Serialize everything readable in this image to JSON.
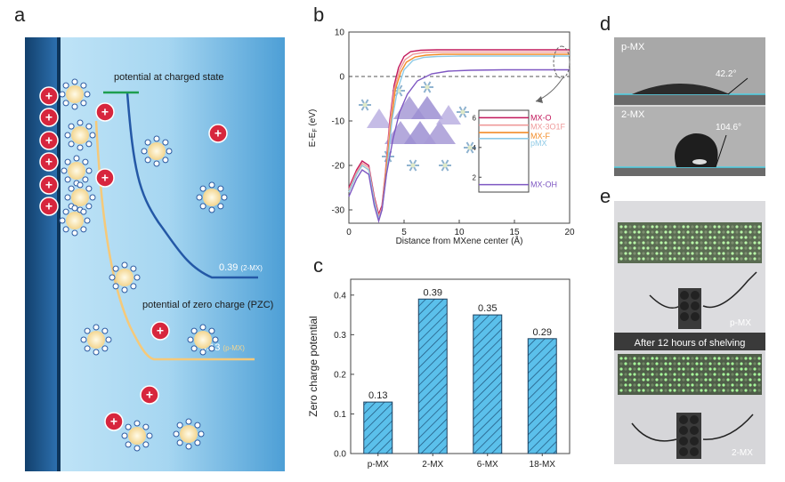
{
  "panels": {
    "a": {
      "letter": "a",
      "charged_label": "potential at charged state",
      "pzc_label": "potential of zero charge  (PZC)",
      "value_2mx": "0.39",
      "tag_2mx": "(2-MX)",
      "value_pmx": "0.13",
      "tag_pmx": "(p-MX)",
      "plus_sign": "+"
    },
    "b": {
      "letter": "b"
    },
    "c": {
      "letter": "c"
    },
    "d": {
      "letter": "d",
      "sample_top": "p-MX",
      "angle_top": "42.2°",
      "sample_bottom": "2-MX",
      "angle_bottom": "104.6°"
    },
    "e": {
      "letter": "e",
      "tag_top": "p-MX",
      "caption": "After 12 hours of shelving",
      "tag_bottom": "2-MX"
    }
  },
  "chart_data": [
    {
      "type": "line",
      "xlabel": "Distance from MXene center (Å)",
      "ylabel": "E-E",
      "ylabel_sub": "F",
      "ylabel_unit": " (eV)",
      "xlim": [
        0,
        20
      ],
      "ylim": [
        -33,
        10
      ],
      "xticks": [
        0,
        5,
        10,
        15,
        20
      ],
      "yticks": [
        10,
        0,
        -10,
        -20,
        -30
      ],
      "series": [
        {
          "name": "MX-O",
          "color": "#c2185b",
          "x": [
            0,
            0.7,
            1.2,
            1.8,
            2.3,
            2.7,
            3.0,
            3.3,
            3.7,
            4.1,
            4.5,
            5.0,
            5.6,
            6.5,
            8,
            10,
            13,
            16,
            20
          ],
          "y": [
            -25,
            -21,
            -19,
            -20,
            -27,
            -31,
            -29,
            -22,
            -10,
            -2,
            2,
            4.5,
            5.6,
            5.9,
            6,
            6,
            6,
            6,
            6
          ]
        },
        {
          "name": "MX-3O1F",
          "color": "#ef9a9a",
          "x": [
            0,
            0.7,
            1.2,
            1.8,
            2.3,
            2.7,
            3.0,
            3.3,
            3.7,
            4.1,
            4.6,
            5.1,
            5.8,
            6.8,
            8,
            10,
            13,
            16,
            20
          ],
          "y": [
            -25.5,
            -21.5,
            -19.5,
            -20.5,
            -27.5,
            -31.5,
            -29.5,
            -22.5,
            -11,
            -3,
            1.5,
            3.8,
            5,
            5.4,
            5.5,
            5.5,
            5.5,
            5.5,
            5.5
          ]
        },
        {
          "name": "MX-F",
          "color": "#f28c28",
          "x": [
            0,
            0.7,
            1.2,
            1.8,
            2.3,
            2.7,
            3.0,
            3.3,
            3.8,
            4.2,
            4.7,
            5.2,
            6,
            7,
            8.5,
            10,
            13,
            16,
            20
          ],
          "y": [
            -26,
            -22,
            -20,
            -21,
            -28,
            -32,
            -30,
            -23,
            -11,
            -3,
            1,
            3.2,
            4.4,
            4.8,
            5,
            5,
            5,
            5,
            5
          ]
        },
        {
          "name": "pMX",
          "color": "#8ecae6",
          "x": [
            0,
            0.7,
            1.2,
            1.8,
            2.3,
            2.7,
            3.0,
            3.4,
            3.9,
            4.4,
            5,
            5.8,
            6.8,
            8,
            10,
            13,
            16,
            20
          ],
          "y": [
            -26,
            -22,
            -20,
            -21,
            -28,
            -32,
            -30,
            -22,
            -10,
            -3,
            1.5,
            3.6,
            4.3,
            4.5,
            4.6,
            4.6,
            4.6,
            4.6
          ]
        },
        {
          "name": "MX-OH",
          "color": "#7e57c2",
          "x": [
            0,
            0.7,
            1.2,
            1.8,
            2.3,
            2.7,
            3.0,
            3.4,
            4,
            4.6,
            5.3,
            6.2,
            7.5,
            9,
            11,
            14,
            17,
            20
          ],
          "y": [
            -27,
            -23,
            -21,
            -22,
            -29,
            -32.5,
            -30,
            -22,
            -14,
            -8,
            -4,
            -1,
            0.6,
            1.2,
            1.4,
            1.5,
            1.5,
            1.5
          ]
        }
      ],
      "reference_line_y": 0,
      "inset": {
        "ylim": [
          1,
          6.5
        ],
        "yticks": [
          6,
          4,
          2
        ],
        "levels": [
          {
            "name": "MX-O",
            "value": 6.0,
            "color": "#c2185b"
          },
          {
            "name": "MX-3O1F",
            "value": 5.5,
            "color": "#ef9a9a"
          },
          {
            "name": "MX-F",
            "value": 5.0,
            "color": "#f28c28"
          },
          {
            "name": "pMX",
            "value": 4.6,
            "color": "#8ecae6"
          },
          {
            "name": "MX-OH",
            "value": 1.5,
            "color": "#7e57c2"
          }
        ]
      }
    },
    {
      "type": "bar",
      "ylabel": "Zero charge potential",
      "xlabel": "",
      "categories": [
        "p-MX",
        "2-MX",
        "6-MX",
        "18-MX"
      ],
      "values": [
        0.13,
        0.39,
        0.35,
        0.29
      ],
      "value_labels": [
        "0.13",
        "0.39",
        "0.35",
        "0.29"
      ],
      "ylim": [
        0,
        0.44
      ],
      "yticks": [
        0.0,
        0.1,
        0.2,
        0.3,
        0.4
      ],
      "ytick_labels": [
        "0.0",
        "0.1",
        "0.2",
        "0.3",
        "0.4"
      ],
      "bar_color": "#5bc0eb",
      "hatch": "diagonal"
    }
  ]
}
